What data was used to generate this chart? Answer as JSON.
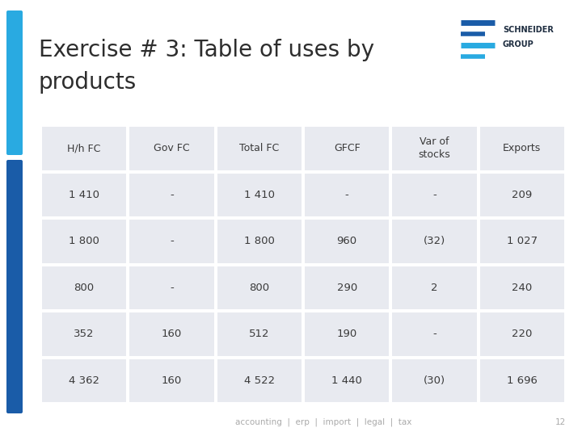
{
  "title_line1": "Exercise # 3: Table of uses by",
  "title_line2": "products",
  "title_fontsize": 20,
  "title_color": "#2d2d2d",
  "background_color": "#ffffff",
  "left_bar_color1": "#29aae1",
  "left_bar_color2": "#1a5ca8",
  "header_row": [
    "H/h FC",
    "Gov FC",
    "Total FC",
    "GFCF",
    "Var of\nstocks",
    "Exports"
  ],
  "data_rows": [
    [
      "1 410",
      "-",
      "1 410",
      "-",
      "-",
      "209"
    ],
    [
      "1 800",
      "-",
      "1 800",
      "960",
      "(32)",
      "1 027"
    ],
    [
      "800",
      "-",
      "800",
      "290",
      "2",
      "240"
    ],
    [
      "352",
      "160",
      "512",
      "190",
      "-",
      "220"
    ],
    [
      "4 362",
      "160",
      "4 522",
      "1 440",
      "(30)",
      "1 696"
    ]
  ],
  "table_bg_color": "#e8eaf0",
  "table_line_color": "#ffffff",
  "table_text_color": "#3a3a3a",
  "footer_text": "accounting  |  erp  |  import  |  legal  |  tax",
  "footer_page": "12",
  "footer_color": "#aaaaaa",
  "footer_fontsize": 7.5,
  "schneider_text1": "SCHNEIDER",
  "schneider_text2": "GROUP"
}
